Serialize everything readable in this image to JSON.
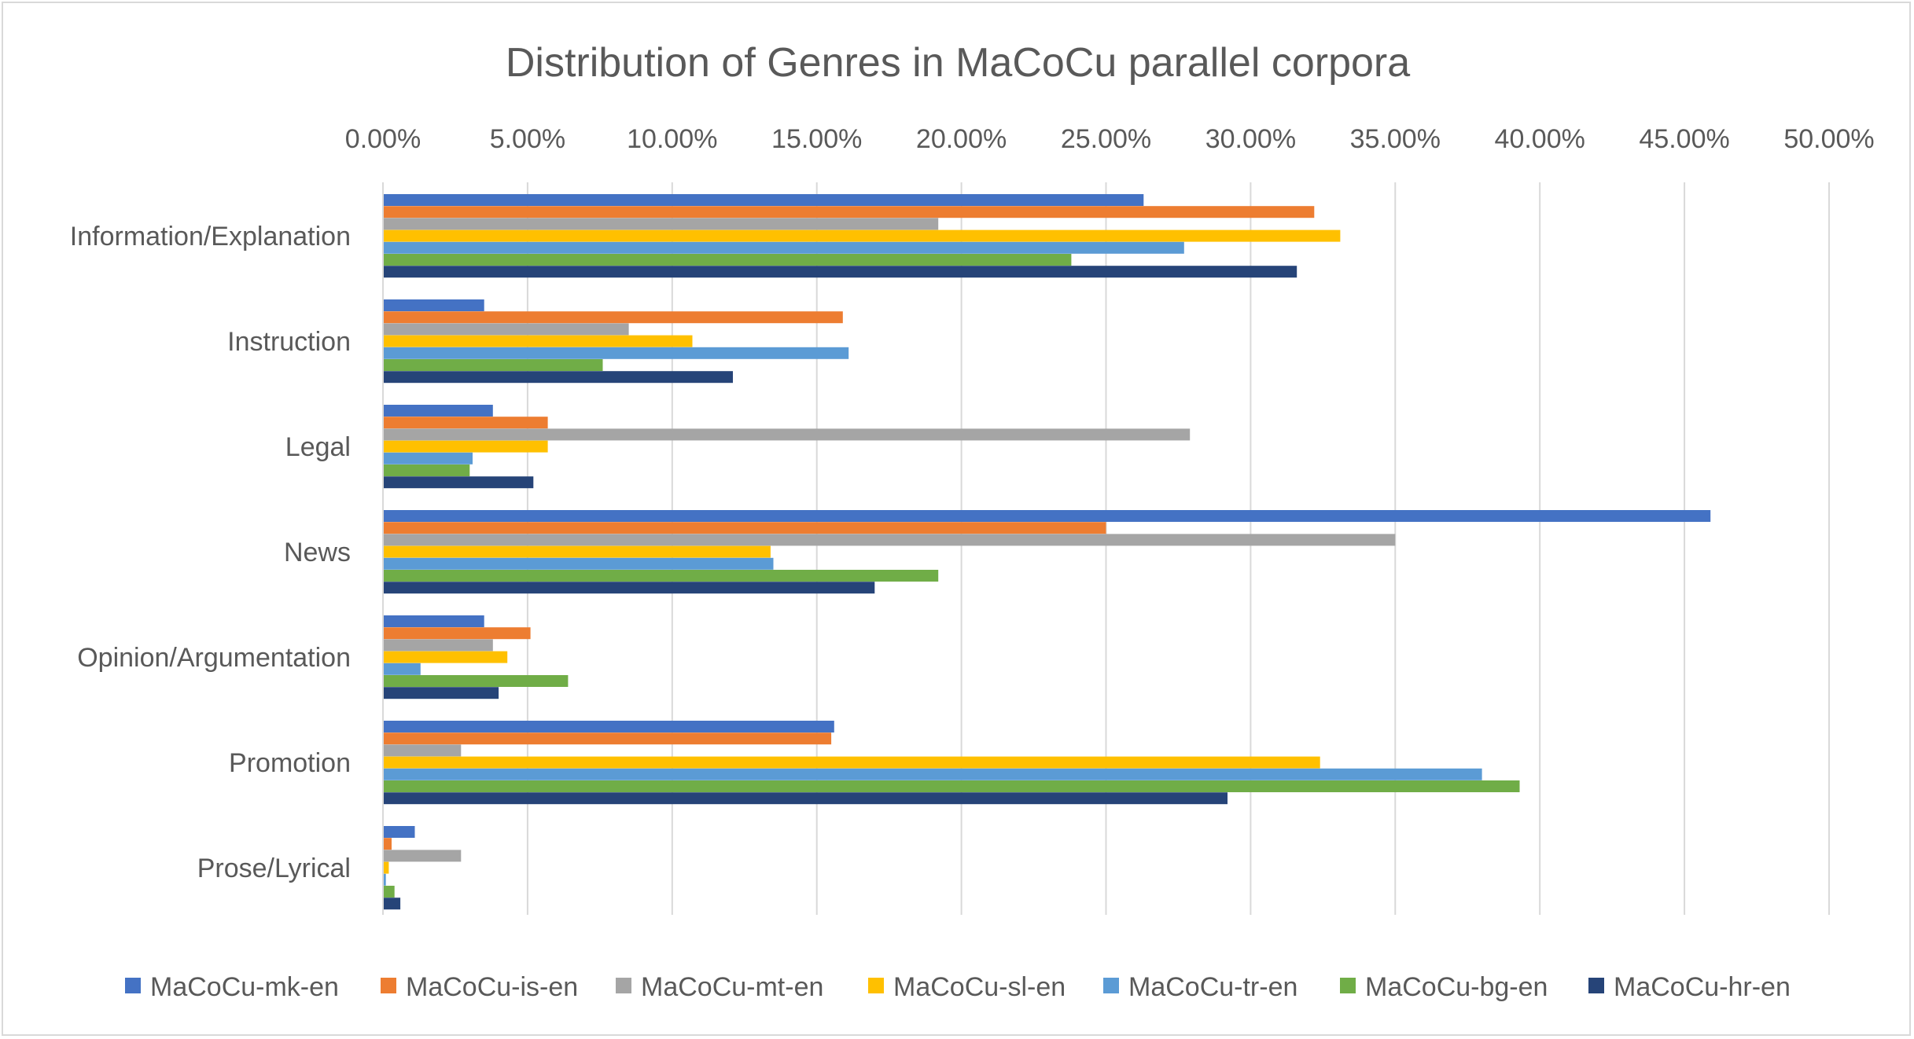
{
  "chart_data": {
    "type": "bar",
    "orientation": "horizontal",
    "title": "Distribution of Genres in MaCoCu parallel corpora",
    "xlabel": "",
    "ylabel": "",
    "xlim": [
      0,
      50
    ],
    "x_ticks": [
      "0.00%",
      "5.00%",
      "10.00%",
      "15.00%",
      "20.00%",
      "25.00%",
      "30.00%",
      "35.00%",
      "40.00%",
      "45.00%",
      "50.00%"
    ],
    "x_axis_position": "top",
    "grid": true,
    "legend_position": "bottom",
    "categories": [
      "Information/Explanation",
      "Instruction",
      "Legal",
      "News",
      "Opinion/Argumentation",
      "Promotion",
      "Prose/Lyrical"
    ],
    "series": [
      {
        "name": "MaCoCu-mk-en",
        "color": "#4472c4",
        "values": [
          26.3,
          3.5,
          3.8,
          45.9,
          3.5,
          15.6,
          1.1
        ]
      },
      {
        "name": "MaCoCu-is-en",
        "color": "#ed7d31",
        "values": [
          32.2,
          15.9,
          5.7,
          25.0,
          5.1,
          15.5,
          0.3
        ]
      },
      {
        "name": "MaCoCu-mt-en",
        "color": "#a5a5a5",
        "values": [
          19.2,
          8.5,
          27.9,
          35.0,
          3.8,
          2.7,
          2.7
        ]
      },
      {
        "name": "MaCoCu-sl-en",
        "color": "#ffc000",
        "values": [
          33.1,
          10.7,
          5.7,
          13.4,
          4.3,
          32.4,
          0.2
        ]
      },
      {
        "name": "MaCoCu-tr-en",
        "color": "#5b9bd5",
        "values": [
          27.7,
          16.1,
          3.1,
          13.5,
          1.3,
          38.0,
          0.1
        ]
      },
      {
        "name": "MaCoCu-bg-en",
        "color": "#70ad47",
        "values": [
          23.8,
          7.6,
          3.0,
          19.2,
          6.4,
          39.3,
          0.4
        ]
      },
      {
        "name": "MaCoCu-hr-en",
        "color": "#264478",
        "values": [
          31.6,
          12.1,
          5.2,
          17.0,
          4.0,
          29.2,
          0.6
        ]
      }
    ]
  }
}
